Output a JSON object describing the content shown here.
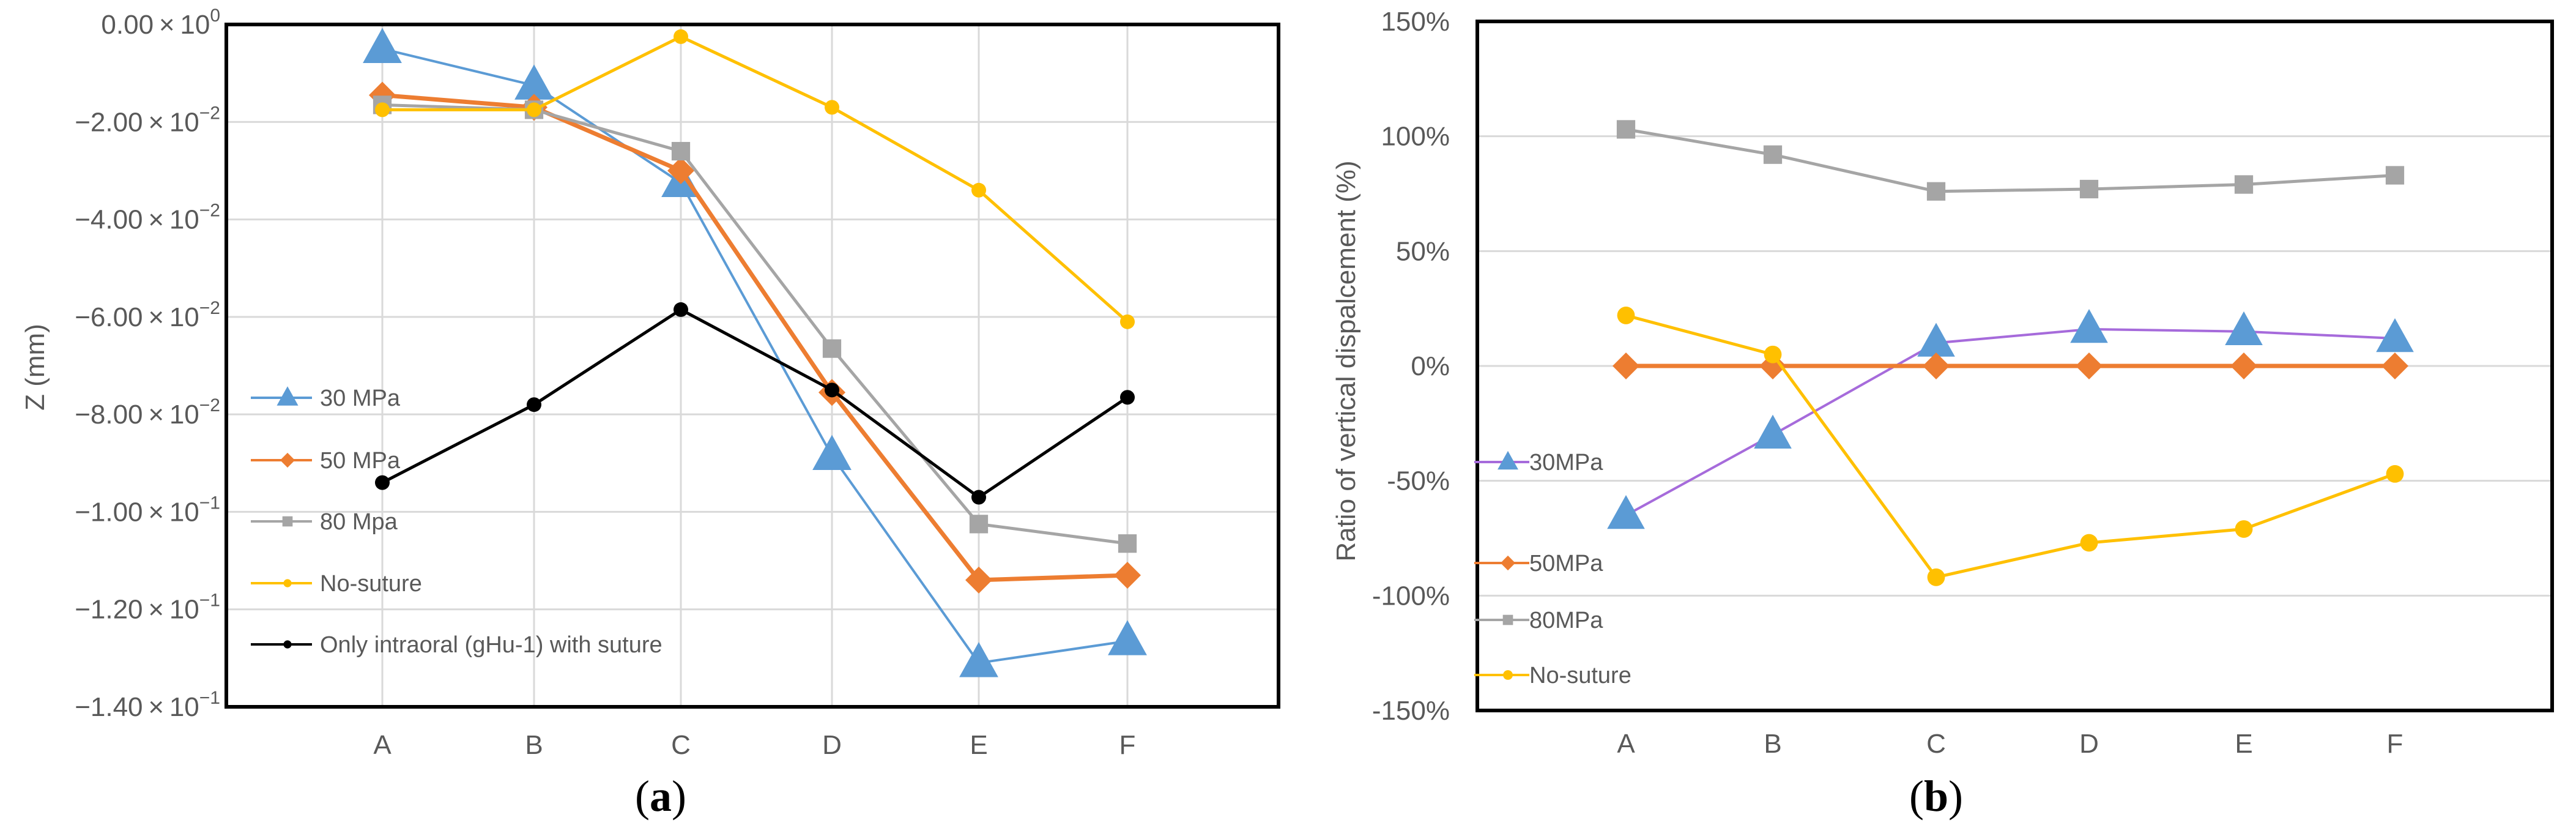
{
  "chart_data": [
    {
      "type": "line",
      "panel_label": "a",
      "ylabel": "Z (mm)",
      "xlabel": "",
      "categories": [
        "A",
        "B",
        "C",
        "D",
        "E",
        "F"
      ],
      "ylim": [
        -0.14,
        0
      ],
      "ytick_values": [
        0,
        -0.02,
        -0.04,
        -0.06,
        -0.08,
        -0.1,
        -0.12,
        -0.14
      ],
      "ytick_labels": [
        {
          "mant": "0.00",
          "exp": "0"
        },
        {
          "mant": "−2.00",
          "exp": "−2"
        },
        {
          "mant": "−4.00",
          "exp": "−2"
        },
        {
          "mant": "−6.00",
          "exp": "−2"
        },
        {
          "mant": "−8.00",
          "exp": "−2"
        },
        {
          "mant": "−1.00",
          "exp": "−1"
        },
        {
          "mant": "−1.20",
          "exp": "−1"
        },
        {
          "mant": "−1.40",
          "exp": "−1"
        }
      ],
      "grid": true,
      "legend_position": "left",
      "series": [
        {
          "name": "30 MPa",
          "marker": "triangle",
          "color": "#5b9bd5",
          "values": [
            -0.005,
            -0.0125,
            -0.0325,
            -0.0885,
            -0.131,
            -0.1265
          ]
        },
        {
          "name": "50 MPa",
          "marker": "diamond",
          "color": "#ed7d31",
          "values": [
            -0.0145,
            -0.017,
            -0.03,
            -0.0755,
            -0.114,
            -0.113
          ]
        },
        {
          "name": "80 Mpa",
          "marker": "square",
          "color": "#a5a5a5",
          "values": [
            -0.0165,
            -0.0175,
            -0.026,
            -0.0665,
            -0.1025,
            -0.1065
          ]
        },
        {
          "name": "No-suture",
          "marker": "circle",
          "color": "#ffc000",
          "values": [
            -0.0175,
            -0.0175,
            -0.0025,
            -0.017,
            -0.034,
            -0.061
          ]
        },
        {
          "name": "Only intraoral  (gHu-1) with suture",
          "marker": "circle",
          "color": "#000000",
          "values": [
            -0.094,
            -0.078,
            -0.0585,
            -0.075,
            -0.097,
            -0.0765
          ]
        }
      ]
    },
    {
      "type": "line",
      "panel_label": "b",
      "ylabel": "Ratio of vertical dispalcement (%)",
      "xlabel": "",
      "categories": [
        "A",
        "B",
        "C",
        "D",
        "E",
        "F"
      ],
      "ylim": [
        -150,
        150
      ],
      "ytick_values": [
        150,
        100,
        50,
        0,
        -50,
        -100,
        -150
      ],
      "ytick_labels": [
        "150%",
        "100%",
        "50%",
        "0%",
        "-50%",
        "-100%",
        "-150%"
      ],
      "grid": true,
      "legend_position": "left",
      "series": [
        {
          "name": "30MPa",
          "marker": "triangle",
          "color": "#5b9bd5",
          "line_color": "#a66bdb",
          "values": [
            -65,
            -30,
            10,
            16,
            15,
            12
          ]
        },
        {
          "name": "50MPa",
          "marker": "diamond",
          "color": "#ed7d31",
          "values": [
            0,
            0,
            0,
            0,
            0,
            0
          ]
        },
        {
          "name": "80MPa",
          "marker": "square",
          "color": "#a5a5a5",
          "values": [
            103,
            92,
            76,
            77,
            79,
            83
          ]
        },
        {
          "name": "No-suture",
          "marker": "circle",
          "color": "#ffc000",
          "values": [
            22,
            5,
            -92,
            -77,
            -71,
            -47
          ]
        }
      ]
    }
  ]
}
